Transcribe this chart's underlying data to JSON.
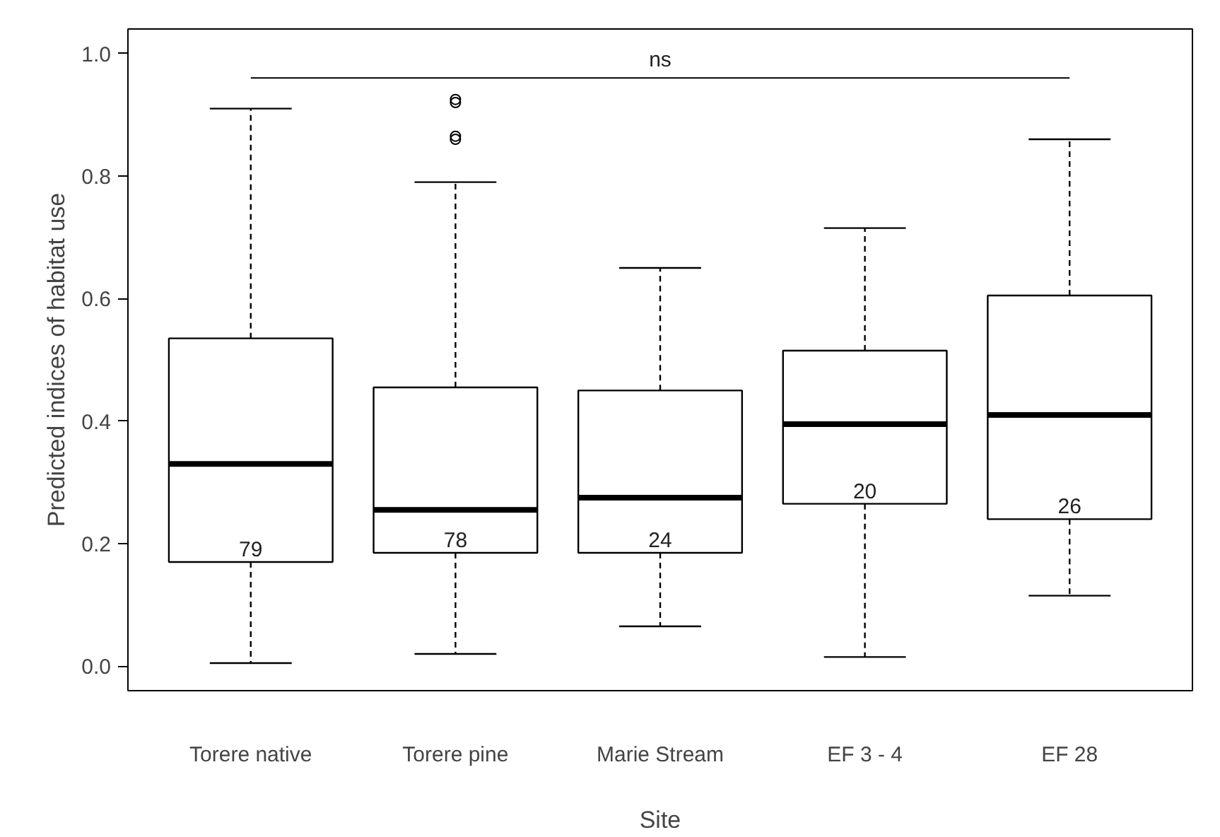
{
  "chart_data": {
    "type": "box",
    "xlabel": "Site",
    "ylabel": "Predicted indices of habitat use",
    "categories": [
      "Torere native",
      "Torere pine",
      "Marie Stream",
      "EF 3 - 4",
      "EF 28"
    ],
    "boxes": [
      {
        "low": 0.005,
        "q1": 0.17,
        "median": 0.33,
        "q3": 0.535,
        "high": 0.91
      },
      {
        "low": 0.02,
        "q1": 0.185,
        "median": 0.255,
        "q3": 0.455,
        "high": 0.79,
        "outliers": [
          0.86,
          0.865,
          0.92,
          0.925
        ]
      },
      {
        "low": 0.065,
        "q1": 0.185,
        "median": 0.275,
        "q3": 0.45,
        "high": 0.65
      },
      {
        "low": 0.015,
        "q1": 0.265,
        "median": 0.395,
        "q3": 0.515,
        "high": 0.715
      },
      {
        "low": 0.115,
        "q1": 0.24,
        "median": 0.41,
        "q3": 0.605,
        "high": 0.86
      }
    ],
    "ylim": [
      -0.04,
      1.04
    ],
    "yticks": [
      {
        "value": 0,
        "label": "0.0"
      },
      {
        "value": 0.2,
        "label": "0.2"
      },
      {
        "value": 0.4,
        "label": "0.4"
      },
      {
        "value": 0.6,
        "label": "0.6"
      },
      {
        "value": 0.8,
        "label": "0.8"
      },
      {
        "value": 1,
        "label": "1.0"
      }
    ],
    "annotations": [
      "79",
      "78",
      "24",
      "20",
      "26",
      "ns"
    ],
    "grid": false
  }
}
